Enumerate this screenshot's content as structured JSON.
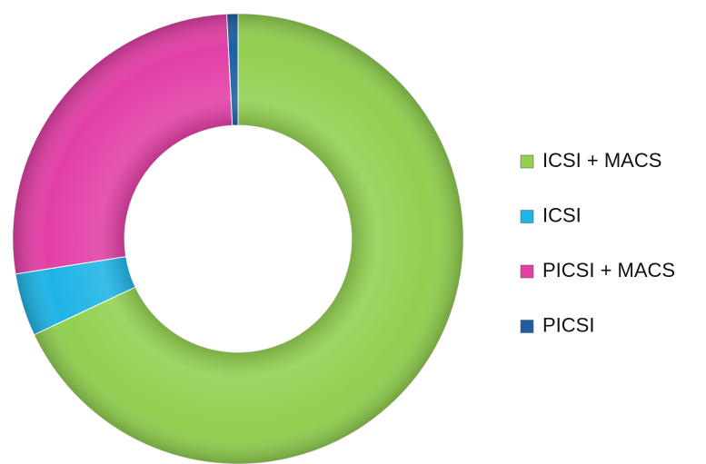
{
  "chart_data": {
    "type": "donut",
    "categories": [
      "ICSI + MACS",
      "ICSI",
      "PICSI + MACS",
      "PICSI"
    ],
    "values": [
      68,
      4.5,
      26.7,
      0.8
    ],
    "colors": [
      "#92d050",
      "#1eb4e6",
      "#e23fa6",
      "#1f5f9f"
    ],
    "legend": "right"
  }
}
